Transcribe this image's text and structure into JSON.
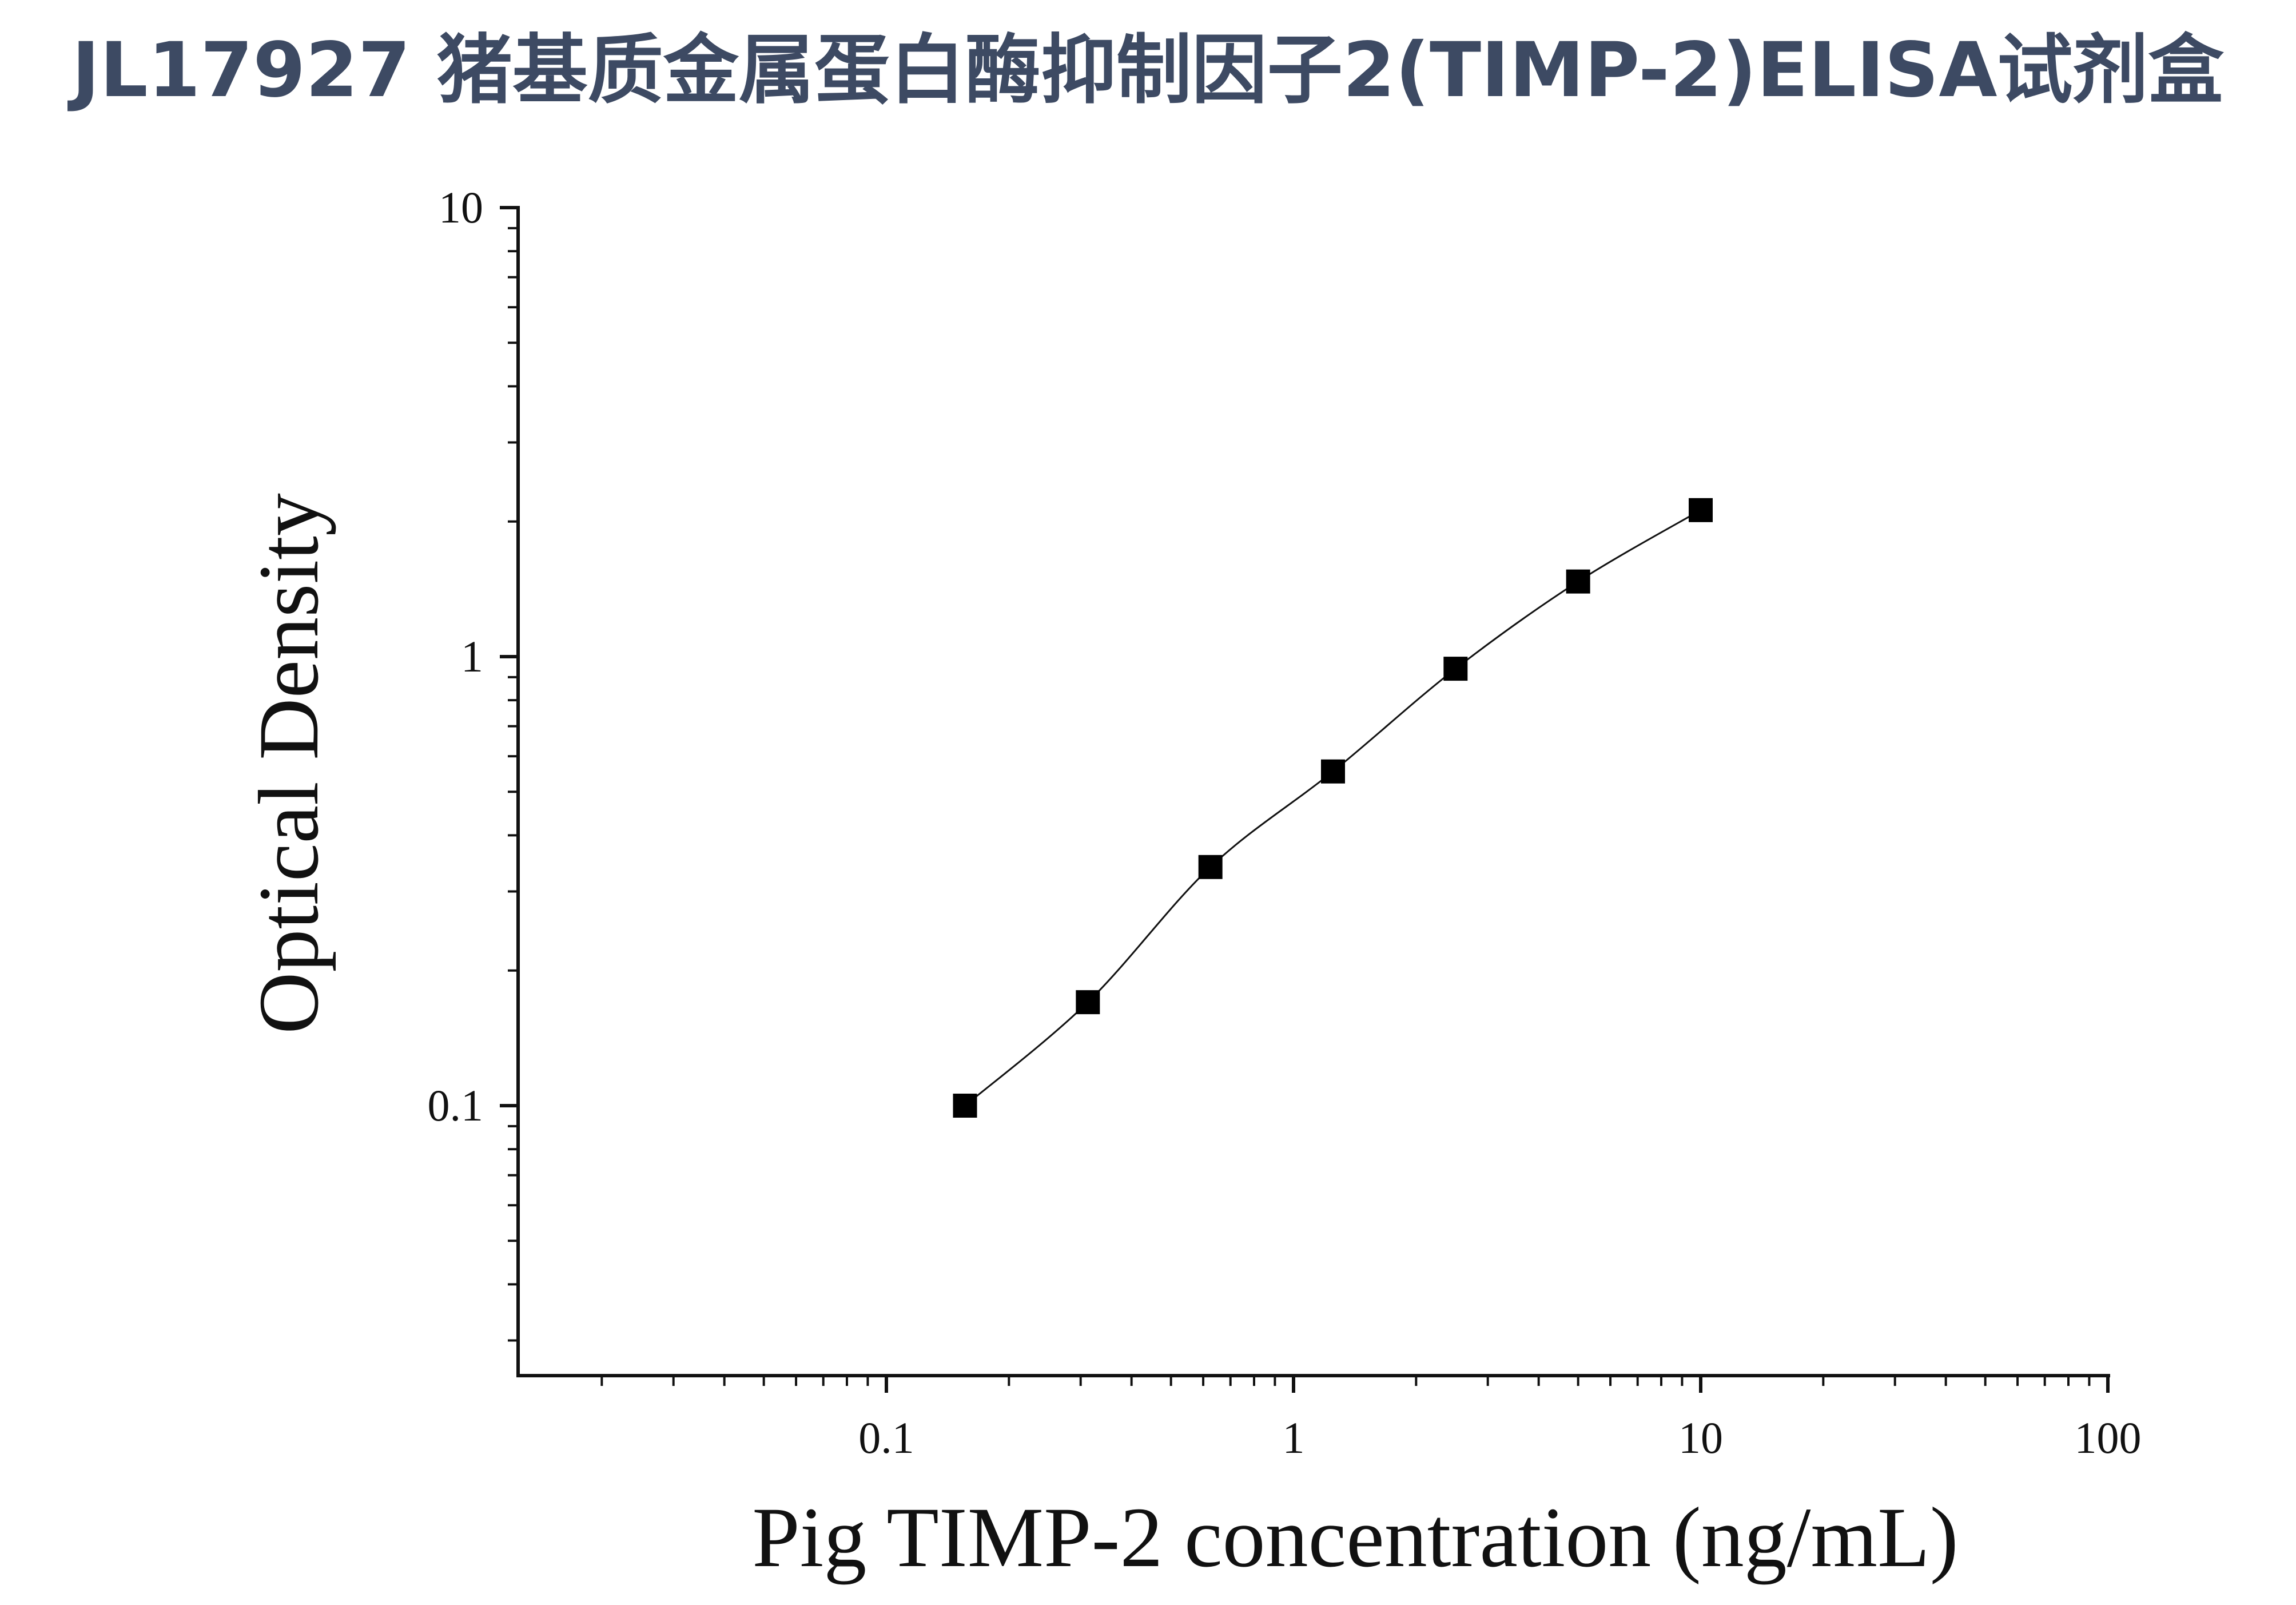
{
  "chart_data": {
    "type": "scatter",
    "title": "JL17927 猪基质金属蛋白酶抑制因子2(TIMP-2)ELISA试剂盒",
    "xlabel": "Pig TIMP-2 concentration (ng/mL)",
    "ylabel": "Optical Density",
    "x_scale": "log",
    "y_scale": "log",
    "xlim": [
      0.01,
      100
    ],
    "ylim": [
      0.026,
      10
    ],
    "x_ticks": [
      {
        "value": 0.1,
        "label": "0.1"
      },
      {
        "value": 1,
        "label": "1"
      },
      {
        "value": 10,
        "label": "10"
      },
      {
        "value": 100,
        "label": "100"
      }
    ],
    "y_ticks": [
      {
        "value": 0.1,
        "label": "0.1"
      },
      {
        "value": 1,
        "label": "1"
      },
      {
        "value": 10,
        "label": "10"
      }
    ],
    "grid": false,
    "marker": "square",
    "fit_curve": true,
    "colors": {
      "title": "#3d4a63",
      "marks": "#000000"
    },
    "series": [
      {
        "x": [
          0.156,
          0.3125,
          0.625,
          1.25,
          2.5,
          5,
          10
        ],
        "y": [
          0.1,
          0.17,
          0.34,
          0.555,
          0.94,
          1.47,
          2.12
        ]
      }
    ]
  }
}
